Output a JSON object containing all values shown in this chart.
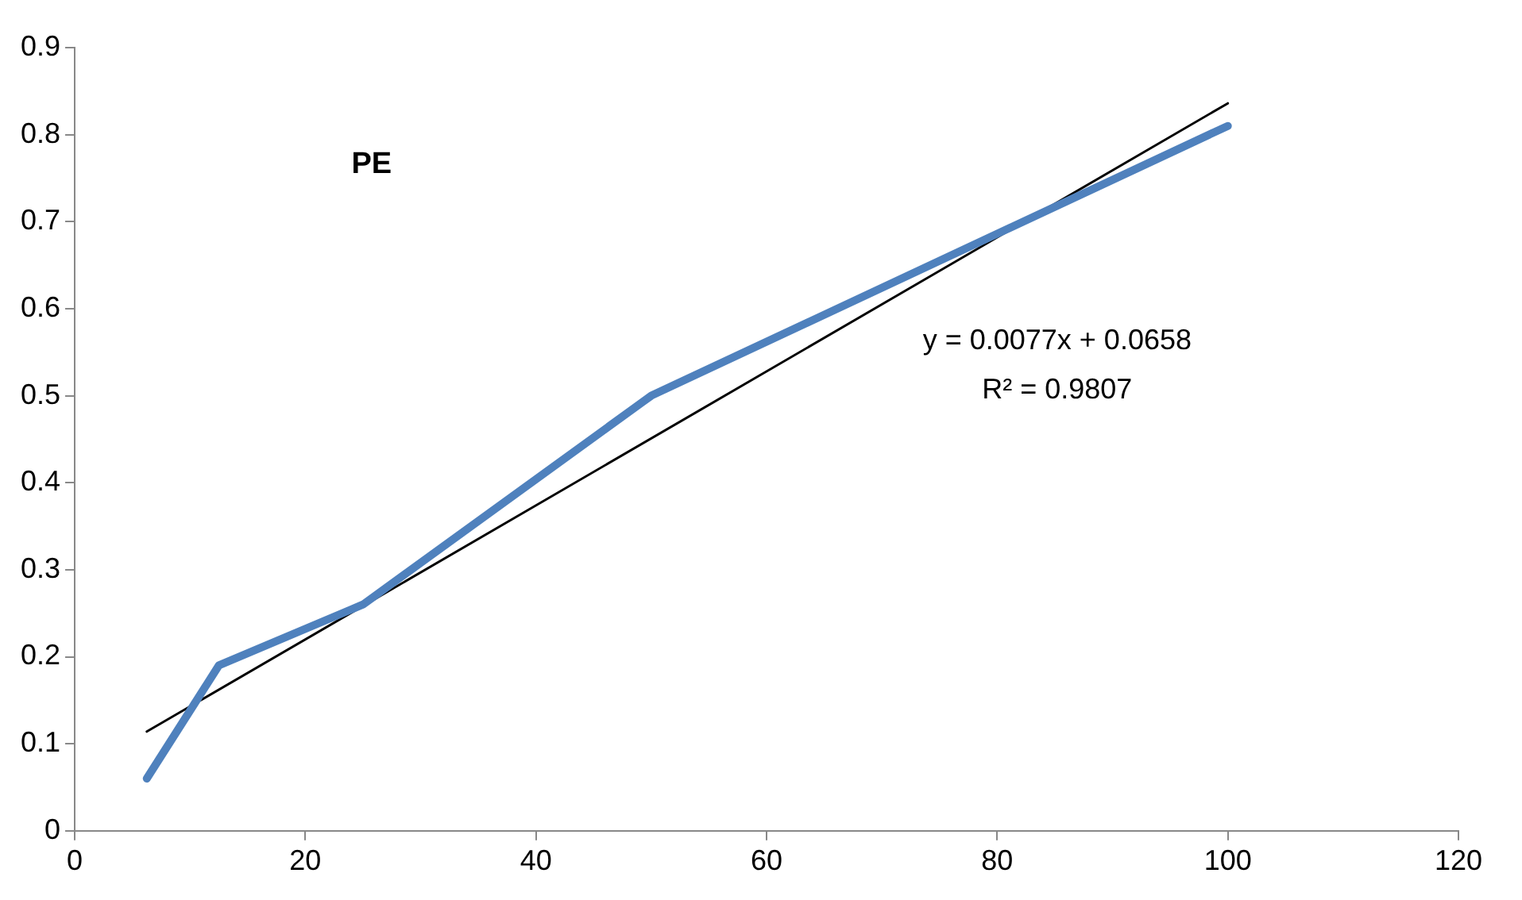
{
  "chart_data": {
    "type": "line",
    "annotations": [
      "PE",
      "y = 0.0077x + 0.0658",
      "R² = 0.9807"
    ],
    "xlim": [
      0,
      120
    ],
    "xticks": [
      0,
      20,
      40,
      60,
      80,
      100,
      120
    ],
    "ylim": [
      0,
      0.9
    ],
    "yticks": [
      0,
      0.1,
      0.2,
      0.3,
      0.4,
      0.5,
      0.6,
      0.7,
      0.8,
      0.9
    ],
    "grid": false,
    "legend": false,
    "marker": "none",
    "series": [
      {
        "color": "#4f81bd",
        "x": [
          6.25,
          12.5,
          25,
          50,
          100
        ],
        "values": [
          0.06,
          0.19,
          0.26,
          0.5,
          0.81
        ]
      },
      {
        "color": "#000000",
        "x": [
          6.25,
          100
        ],
        "values": [
          0.114,
          0.836
        ]
      }
    ]
  }
}
